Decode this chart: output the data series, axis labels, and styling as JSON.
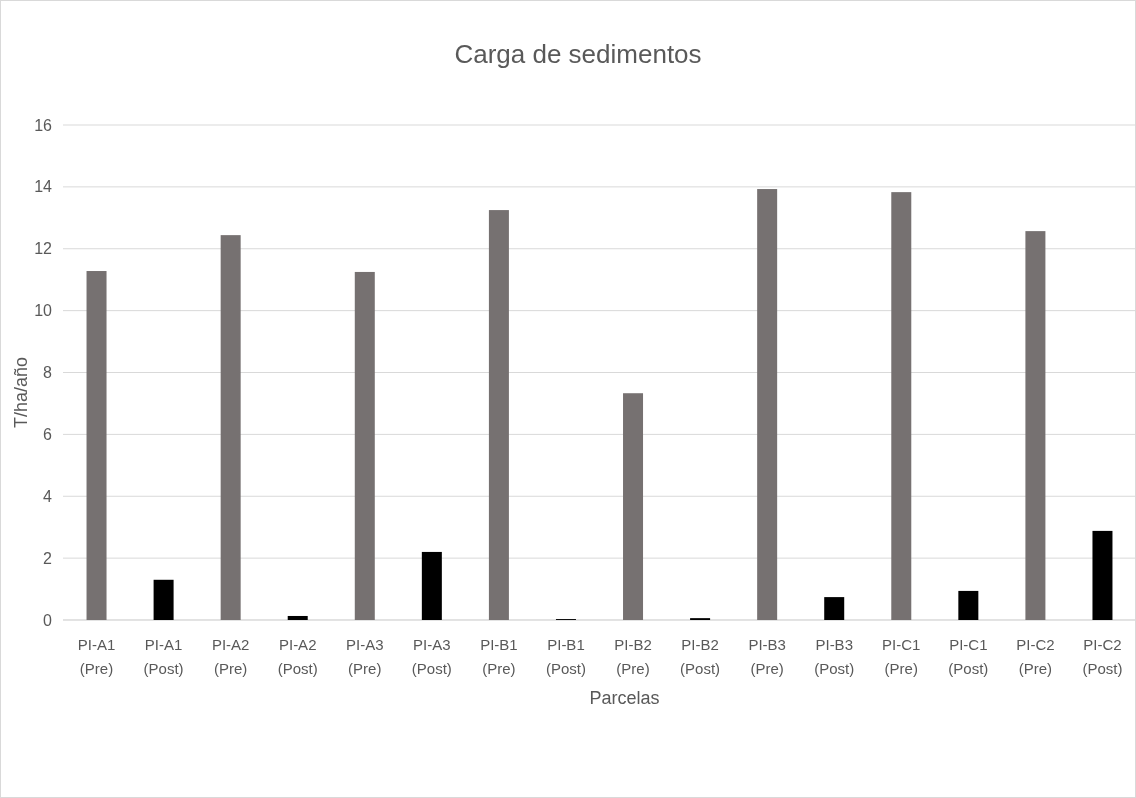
{
  "chart_data": {
    "type": "bar",
    "title": "Carga de sedimentos",
    "xlabel": "Parcelas",
    "ylabel": "T/ha/año",
    "categories": [
      "PI-A1 (Pre)",
      "PI-A1 (Post)",
      "PI-A2 (Pre)",
      "PI-A2 (Post)",
      "PI-A3 (Pre)",
      "PI-A3 (Post)",
      "PI-B1 (Pre)",
      "PI-B1 (Post)",
      "PI-B2 (Pre)",
      "PI-B2 (Post)",
      "PI-B3 (Pre)",
      "PI-B3 (Post)",
      "PI-C1 (Pre)",
      "PI-C1 (Post)",
      "PI-C2 (Pre)",
      "PI-C2 (Post)"
    ],
    "values": [
      11.28,
      1.3,
      12.44,
      0.13,
      11.25,
      2.2,
      13.25,
      0.03,
      7.33,
      0.06,
      13.93,
      0.74,
      13.83,
      0.94,
      12.57,
      2.88
    ],
    "colors": [
      "#767171",
      "#000000",
      "#767171",
      "#000000",
      "#767171",
      "#000000",
      "#767171",
      "#000000",
      "#767171",
      "#000000",
      "#767171",
      "#000000",
      "#767171",
      "#000000",
      "#767171",
      "#000000"
    ],
    "ylim": [
      0,
      16
    ],
    "yticks": [
      0,
      2,
      4,
      6,
      8,
      10,
      12,
      14,
      16
    ],
    "grid": "y"
  }
}
